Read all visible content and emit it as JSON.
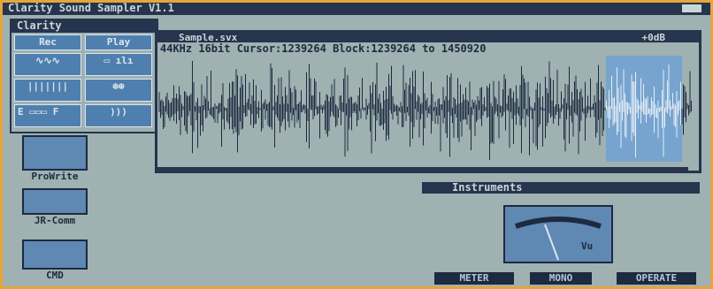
{
  "title_bar": "Clarity Sound Sampler V1.1",
  "clarity": {
    "title": "Clarity",
    "rec": "Rec",
    "play": "Play",
    "slider_left": "E",
    "slider_right": "F"
  },
  "sample": {
    "title": "Sample.svx",
    "gain": "+0dB",
    "info": "44KHz 16bit Cursor:1239264 Block:1239264 to 1450920"
  },
  "icons": [
    "ProWrite",
    "JR-Comm",
    "CMD"
  ],
  "instruments": {
    "title": "Instruments",
    "meter_label": "Vu",
    "buttons": [
      "METER",
      "MONO",
      "OPERATE"
    ]
  }
}
